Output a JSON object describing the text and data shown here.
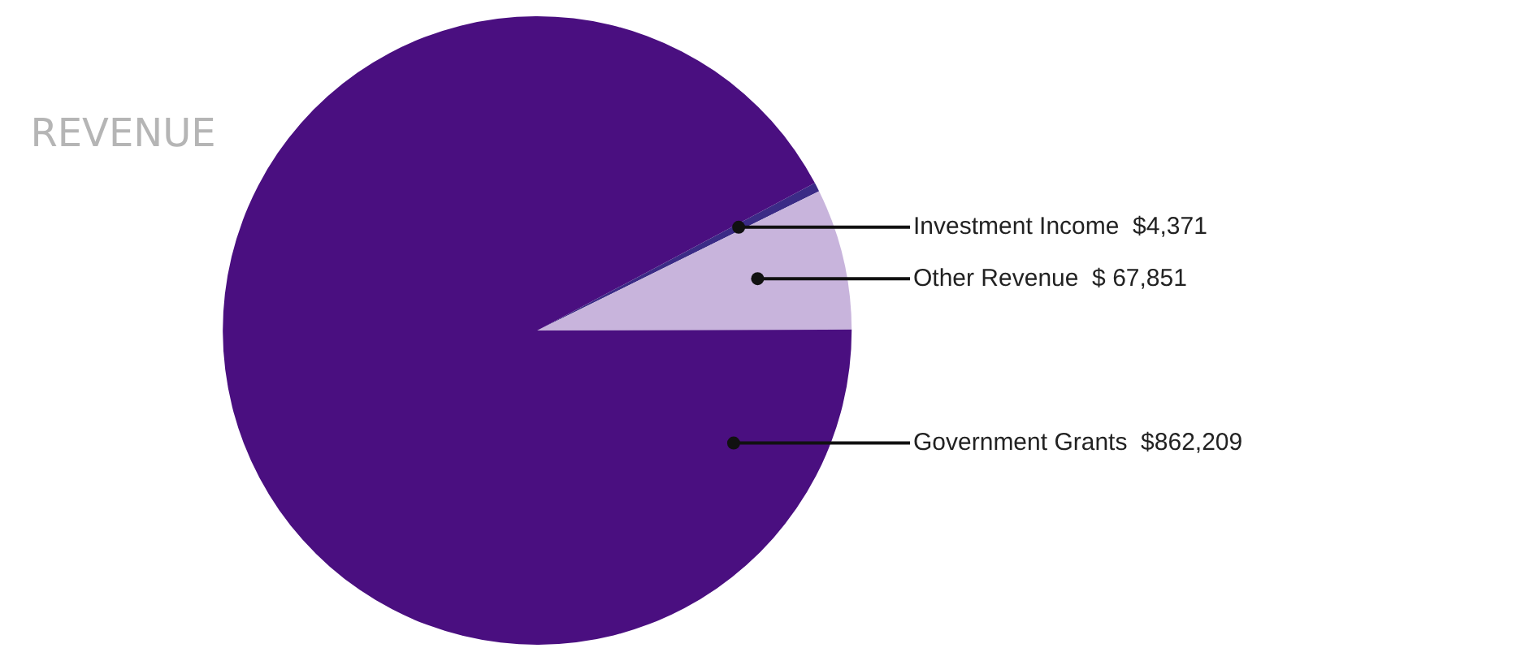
{
  "chart_data": {
    "type": "pie",
    "title": "REVENUE",
    "categories": [
      "Investment Income",
      "Other Revenue",
      "Government Grants"
    ],
    "values": [
      4371,
      67851,
      862209
    ],
    "value_labels": [
      "$4,371",
      "$ 67,851",
      "$862,209"
    ],
    "colors": [
      "#3b2b86",
      "#c8b4dc",
      "#4a0f80"
    ],
    "legend": false
  }
}
